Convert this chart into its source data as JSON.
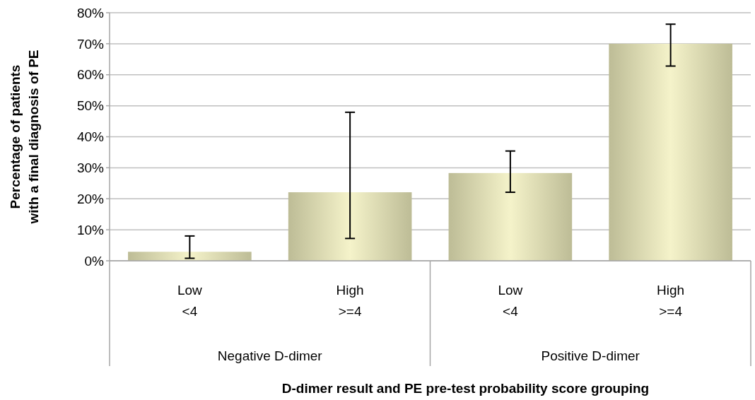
{
  "chart_data": {
    "type": "bar",
    "xlabel": "D-dimer result and PE pre-test probability score grouping",
    "ylabel": "Percentage of patients\nwith a final diagnosis of PE",
    "categories": [
      "Low\n<4",
      "High\n>=4",
      "Low\n<4",
      "High\n>=4"
    ],
    "annotations": [
      "Negative D-dimer",
      "Positive D-dimer"
    ],
    "values": [
      2.9,
      22.1,
      28.3,
      70.0
    ],
    "errors": [
      [
        0.8,
        8.0
      ],
      [
        7.2,
        47.9
      ],
      [
        22.1,
        35.4
      ],
      [
        62.8,
        76.3
      ]
    ],
    "color": "#bdbc96",
    "ylim": [
      0,
      80
    ],
    "yticks": [
      {
        "value": 0,
        "label": "0%"
      },
      {
        "value": 10,
        "label": "10%"
      },
      {
        "value": 20,
        "label": "20%"
      },
      {
        "value": 30,
        "label": "30%"
      },
      {
        "value": 40,
        "label": "40%"
      },
      {
        "value": 50,
        "label": "50%"
      },
      {
        "value": 60,
        "label": "60%"
      },
      {
        "value": 70,
        "label": "70%"
      },
      {
        "value": 80,
        "label": "80%"
      }
    ],
    "grid": "y"
  }
}
